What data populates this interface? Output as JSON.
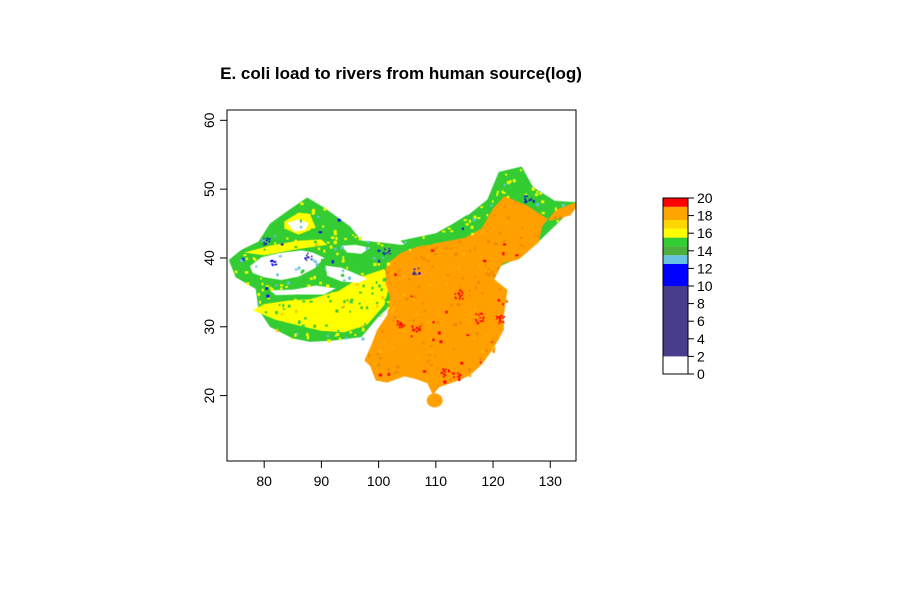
{
  "title": "E. coli load to rivers from human source(log)",
  "map": {
    "x_ticks": [
      80,
      90,
      100,
      110,
      120,
      130
    ],
    "y_ticks": [
      20,
      30,
      40,
      50,
      60
    ],
    "x_range": [
      73.5,
      134.5
    ],
    "y_range": [
      10.5,
      61.5
    ],
    "x_tick_labels": [
      "80",
      "90",
      "100",
      "110",
      "120",
      "130"
    ],
    "y_tick_labels": [
      "20",
      "30",
      "40",
      "50",
      "60"
    ]
  },
  "legend": {
    "breaks": [
      0,
      2,
      4,
      6,
      8,
      10,
      12,
      14,
      16,
      18,
      20
    ],
    "tick_labels": [
      "0",
      "2",
      "4",
      "6",
      "8",
      "10",
      "12",
      "14",
      "16",
      "18",
      "20"
    ],
    "bands": [
      {
        "from": 0,
        "to": 2,
        "color": "#ffffff"
      },
      {
        "from": 2,
        "to": 10,
        "color": "#483d8b"
      },
      {
        "from": 10,
        "to": 12.5,
        "color": "#0000ff"
      },
      {
        "from": 12.5,
        "to": 13.5,
        "color": "#66c2e0"
      },
      {
        "from": 13.5,
        "to": 14.5,
        "color": "#4cae3f"
      },
      {
        "from": 14.5,
        "to": 15.5,
        "color": "#32cd32"
      },
      {
        "from": 15.5,
        "to": 16.5,
        "color": "#ffff00"
      },
      {
        "from": 16.5,
        "to": 17.5,
        "color": "#ffd700"
      },
      {
        "from": 17.5,
        "to": 19,
        "color": "#ffa500"
      },
      {
        "from": 19,
        "to": 20,
        "color": "#ff0000"
      }
    ]
  },
  "colors": {
    "low_land": "#33cc33",
    "mid_land": "#ffff00",
    "high_land": "#ffa000",
    "peak": "#ff0000",
    "lake": "#ffffff",
    "water_low": "#0000ff",
    "water_mid": "#66c2e0",
    "axis": "#000000"
  }
}
